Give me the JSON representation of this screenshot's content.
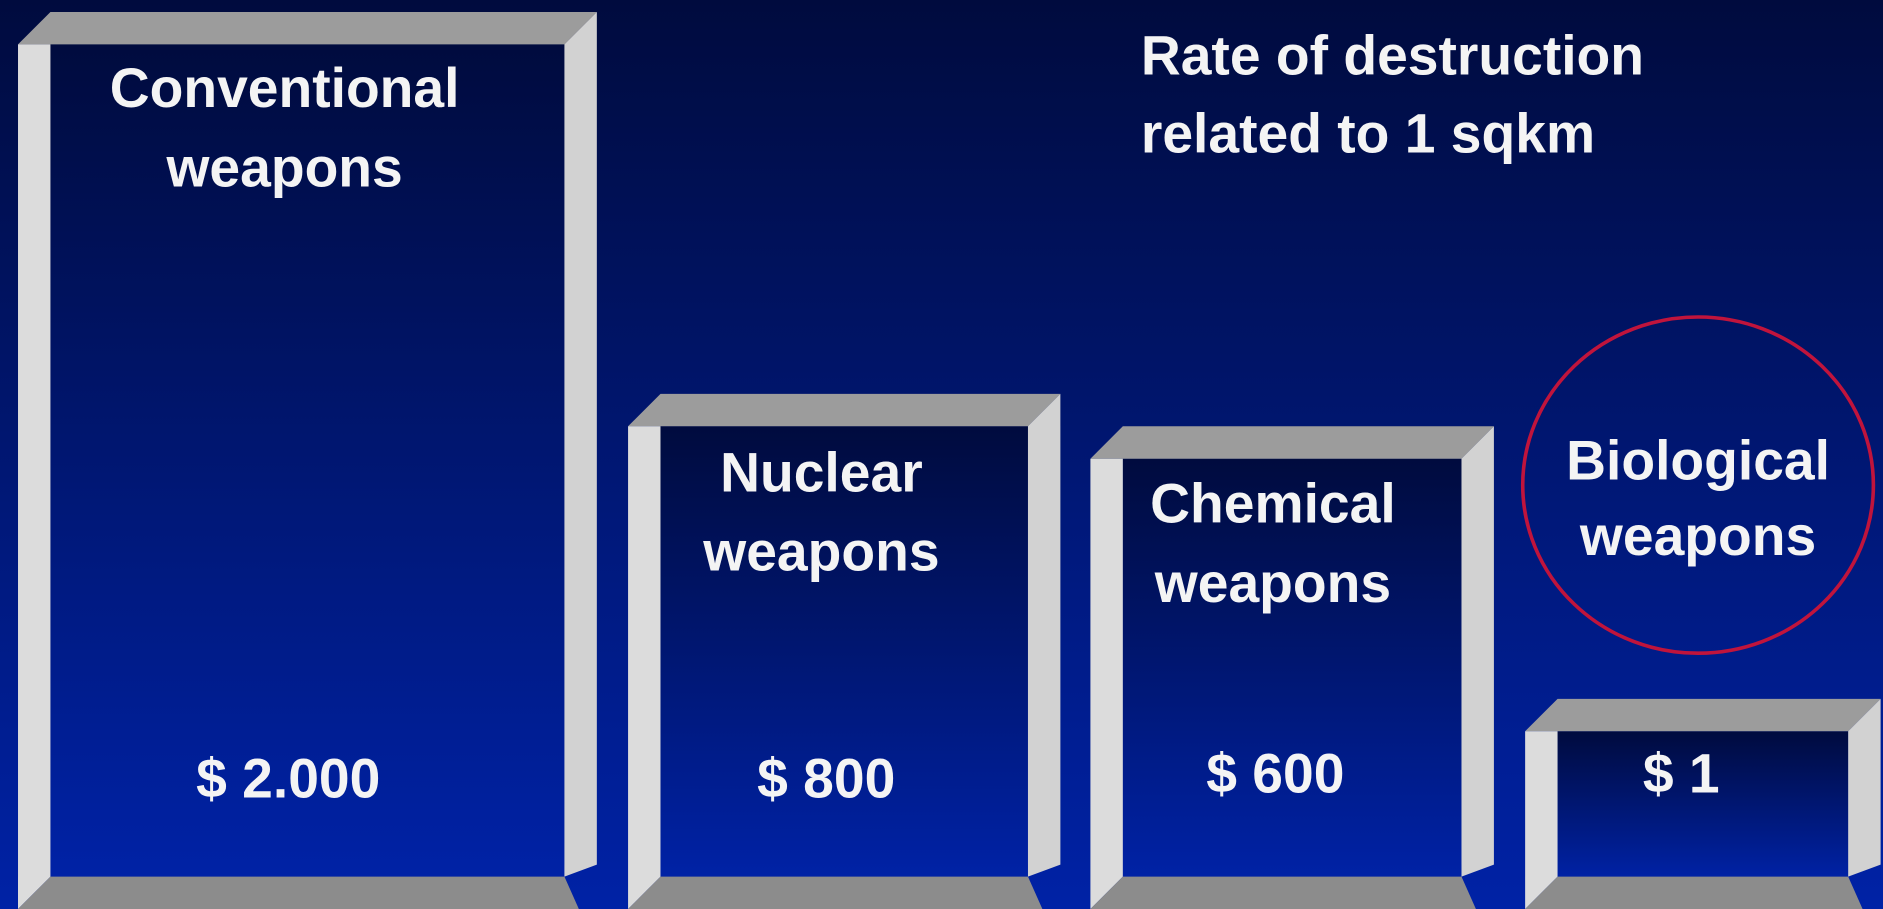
{
  "title": {
    "lines": [
      "Rate of destruction",
      "related to 1 sqkm"
    ]
  },
  "boxes": [
    {
      "label_lines": [
        "Conventional",
        "weapons"
      ],
      "price": "$ 2.000"
    },
    {
      "label_lines": [
        "Nuclear",
        "weapons"
      ],
      "price": "$ 800"
    },
    {
      "label_lines": [
        "Chemical",
        "weapons"
      ],
      "price": "$ 600"
    },
    {
      "label_lines": [
        "Biological",
        "weapons"
      ],
      "price": "$ 1"
    }
  ]
}
